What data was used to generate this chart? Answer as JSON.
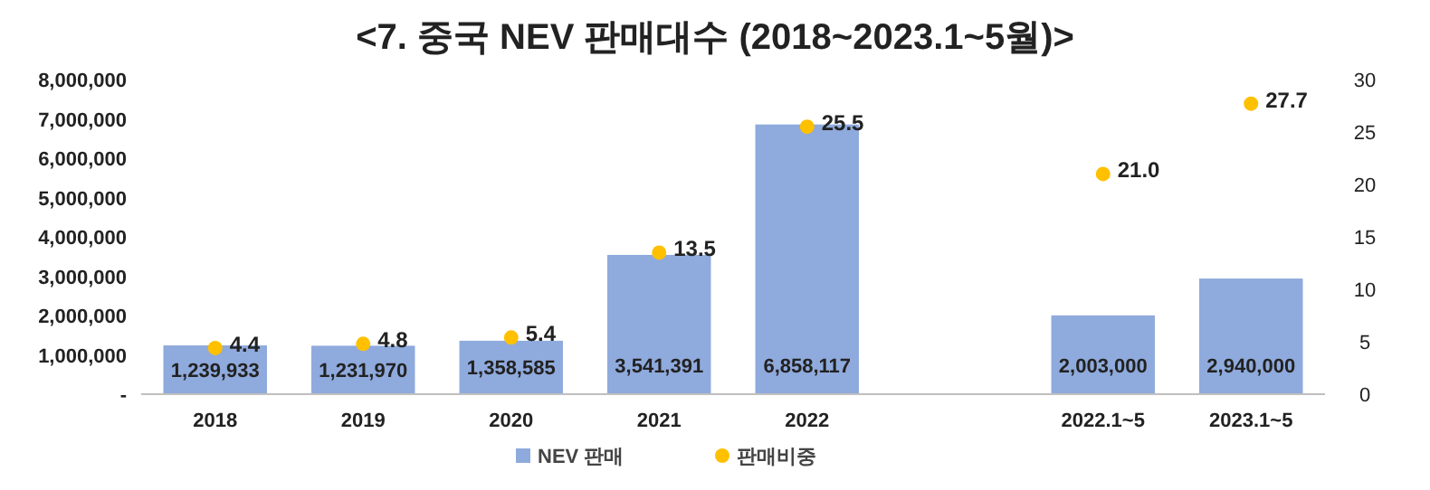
{
  "chart_data": {
    "type": "bar",
    "title": "<7. 중국 NEV 판매대수 (2018~2023.1~5월)>",
    "categories": [
      "2018",
      "2019",
      "2020",
      "2021",
      "2022",
      null,
      "2022.1~5",
      "2023.1~5"
    ],
    "series": [
      {
        "name": "NEV 판매",
        "color": "#8faadc",
        "values": [
          1239933,
          1231970,
          1358585,
          3541391,
          6858117,
          null,
          2003000,
          2940000
        ],
        "value_labels": [
          "1,239,933",
          "1,231,970",
          "1,358,585",
          "3,541,391",
          "6,858,117",
          null,
          "2,003,000",
          "2,940,000"
        ]
      },
      {
        "name": "판매비중",
        "type": "scatter",
        "axis": "y2",
        "color": "#ffc000",
        "values": [
          4.4,
          4.8,
          5.4,
          13.5,
          25.5,
          null,
          21.0,
          27.7
        ],
        "value_labels": [
          "4.4",
          "4.8",
          "5.4",
          "13.5",
          "25.5",
          null,
          "21.0",
          "27.7"
        ]
      }
    ],
    "ylim": [
      0,
      8000000
    ],
    "yticks": [
      {
        "value": 0,
        "label": "-"
      },
      {
        "value": 1000000,
        "label": "1,000,000"
      },
      {
        "value": 2000000,
        "label": "2,000,000"
      },
      {
        "value": 3000000,
        "label": "3,000,000"
      },
      {
        "value": 4000000,
        "label": "4,000,000"
      },
      {
        "value": 5000000,
        "label": "5,000,000"
      },
      {
        "value": 6000000,
        "label": "6,000,000"
      },
      {
        "value": 7000000,
        "label": "7,000,000"
      },
      {
        "value": 8000000,
        "label": "8,000,000"
      }
    ],
    "y2lim": [
      0,
      30
    ],
    "y2ticks": [
      0,
      5,
      10,
      15,
      20,
      25,
      30
    ],
    "marker": "circle",
    "legend": "bottom",
    "grid": false
  }
}
